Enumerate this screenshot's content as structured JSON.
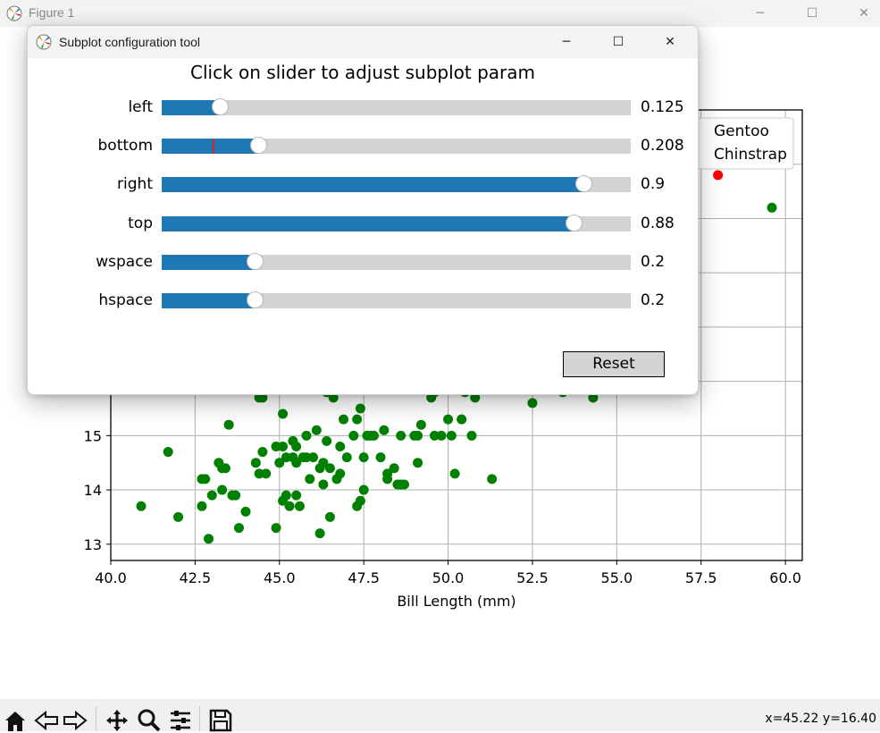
{
  "window": {
    "title": "Figure 1",
    "minimize_glyph": "─",
    "maximize_glyph": "☐",
    "close_glyph": "✕"
  },
  "dialog": {
    "title": "Subplot configuration tool",
    "heading": "Click on slider to adjust subplot param",
    "minimize_glyph": "─",
    "maximize_glyph": "☐",
    "close_glyph": "✕",
    "reset_label": "Reset",
    "sliders": [
      {
        "name": "left",
        "value": "0.125",
        "fraction": 0.125,
        "init": 0.125
      },
      {
        "name": "bottom",
        "value": "0.208",
        "fraction": 0.208,
        "init": 0.11
      },
      {
        "name": "right",
        "value": "0.9",
        "fraction": 0.9,
        "init": 0.9
      },
      {
        "name": "top",
        "value": "0.88",
        "fraction": 0.88,
        "init": 0.88
      },
      {
        "name": "wspace",
        "value": "0.2",
        "fraction": 0.2,
        "init": 0.2
      },
      {
        "name": "hspace",
        "value": "0.2",
        "fraction": 0.2,
        "init": 0.2
      }
    ],
    "accent_color": "#1f77b4",
    "marker_color": "#d62728"
  },
  "legend": {
    "entries": [
      "Gentoo",
      "Chinstrap"
    ]
  },
  "toolbar": {
    "icons": [
      "home-icon",
      "back-icon",
      "forward-icon",
      "pan-icon",
      "zoom-icon",
      "configure-subplots-icon",
      "save-icon"
    ],
    "coordinates": "x=45.22 y=16.40"
  },
  "chart_data": {
    "type": "scatter",
    "xlabel": "Bill Length (mm)",
    "ylabel": "",
    "xlim": [
      40.0,
      60.5
    ],
    "ylim": [
      12.7,
      21.0
    ],
    "xticks": [
      "40.0",
      "42.5",
      "45.0",
      "47.5",
      "50.0",
      "52.5",
      "55.0",
      "57.5",
      "60.0"
    ],
    "yticks": [
      "13",
      "14",
      "15"
    ],
    "xtick_values": [
      40.0,
      42.5,
      45.0,
      47.5,
      50.0,
      52.5,
      55.0,
      57.5,
      60.0
    ],
    "ytick_values": [
      13,
      14,
      15
    ],
    "grid": true,
    "legend_position": "upper-right",
    "series": [
      {
        "name": "Gentoo",
        "color": "#008000",
        "x": [
          40.9,
          41.7,
          42.0,
          42.7,
          42.8,
          42.9,
          43.2,
          43.3,
          43.4,
          43.5,
          43.6,
          43.8,
          44.0,
          44.4,
          44.4,
          44.5,
          44.5,
          44.9,
          45.0,
          45.1,
          45.1,
          45.2,
          45.2,
          45.3,
          45.4,
          45.4,
          45.5,
          45.5,
          45.7,
          45.8,
          45.9,
          46.1,
          46.2,
          46.2,
          46.3,
          46.4,
          46.4,
          46.5,
          46.5,
          46.6,
          46.7,
          46.8,
          47.0,
          47.2,
          47.3,
          47.4,
          47.5,
          47.5,
          47.6,
          47.8,
          48.1,
          48.2,
          48.4,
          48.5,
          48.6,
          48.7,
          49.1,
          49.1,
          49.2,
          49.5,
          49.6,
          49.8,
          50.0,
          50.1,
          50.4,
          50.5,
          50.7,
          50.8,
          51.3,
          52.5,
          53.4,
          54.3,
          42.7,
          43.0,
          43.3,
          45.6,
          46.3,
          47.4,
          48.2,
          45.1,
          46.8,
          47.7,
          44.6,
          46.0,
          49.0,
          50.2,
          45.5,
          46.4,
          47.3,
          48.0,
          46.9,
          43.7,
          44.3,
          45.8,
          49.6,
          44.9,
          48.6
        ],
        "y": [
          13.7,
          14.7,
          13.5,
          13.7,
          14.2,
          13.1,
          14.5,
          14.0,
          14.4,
          15.2,
          13.9,
          13.3,
          13.6,
          15.7,
          14.3,
          14.7,
          15.7,
          13.3,
          14.5,
          14.8,
          13.8,
          14.6,
          13.9,
          13.7,
          14.9,
          14.6,
          14.5,
          13.9,
          14.6,
          15.0,
          14.2,
          15.1,
          14.4,
          13.2,
          14.1,
          14.9,
          15.8,
          14.4,
          13.5,
          15.7,
          14.2,
          14.3,
          14.6,
          15.0,
          15.3,
          13.8,
          14.6,
          14.0,
          15.0,
          15.0,
          15.1,
          14.3,
          14.4,
          14.1,
          15.0,
          14.1,
          15.0,
          14.5,
          15.2,
          15.7,
          15.0,
          15.0,
          15.3,
          15.0,
          15.3,
          15.8,
          15.0,
          15.7,
          14.2,
          15.6,
          15.8,
          15.7,
          14.2,
          13.9,
          14.4,
          13.7,
          14.5,
          15.5,
          14.2,
          15.4,
          14.8,
          15.0,
          14.3,
          14.6,
          15.0,
          14.3,
          14.8,
          15.9,
          13.7,
          14.6,
          15.3,
          13.9,
          14.5,
          14.6,
          15.8,
          14.8,
          14.1
        ]
      },
      {
        "name": "Chinstrap",
        "color": "#ff0000",
        "x": [
          58.0
        ],
        "y": [
          19.8
        ]
      },
      {
        "name": "",
        "color": "#008000",
        "x": [
          59.6
        ],
        "y": [
          19.2
        ]
      }
    ]
  }
}
